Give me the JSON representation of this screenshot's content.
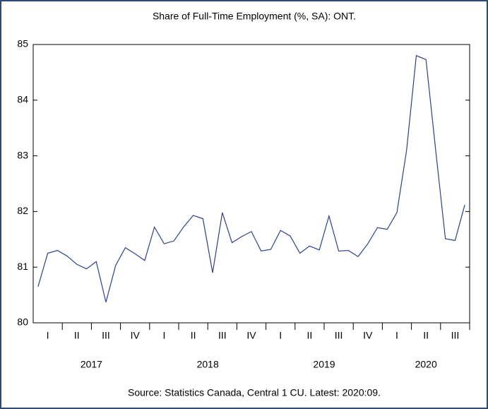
{
  "chart_data": {
    "type": "line",
    "title": "Share of Full-Time Employment (%, SA): ONT.",
    "source": "Source: Statistics Canada, Central 1 CU. Latest: 2020:09.",
    "categories": [
      null,
      null,
      null,
      null,
      null,
      null,
      null,
      null,
      null,
      null,
      null,
      null,
      null,
      null,
      null,
      null,
      null,
      null,
      null,
      null,
      null,
      null,
      null,
      null,
      null,
      null,
      null,
      null,
      null,
      null,
      null,
      null,
      null,
      null,
      null,
      null,
      null,
      null,
      null,
      null,
      null,
      null,
      null,
      null,
      null
    ],
    "quarter_labels": [
      "I",
      "II",
      "III",
      "IV",
      "I",
      "II",
      "III",
      "IV",
      "I",
      "II",
      "III",
      "IV",
      "I",
      "II",
      "III"
    ],
    "years": [
      "2017",
      "2018",
      "2019",
      "2020"
    ],
    "series": [
      {
        "name": "Share of Full-Time Employment",
        "color": "#2e3f8f",
        "values": [
          80.65,
          81.25,
          81.3,
          81.2,
          81.05,
          80.97,
          81.1,
          80.37,
          81.03,
          81.35,
          81.24,
          81.12,
          81.72,
          81.42,
          81.47,
          81.72,
          81.93,
          81.87,
          80.9,
          81.98,
          81.44,
          81.55,
          81.64,
          81.29,
          81.32,
          81.66,
          81.56,
          81.25,
          81.38,
          81.31,
          81.92,
          81.29,
          81.3,
          81.19,
          81.42,
          81.71,
          81.68,
          81.98,
          83.1,
          84.8,
          84.73,
          83.1,
          81.51,
          81.48,
          82.12
        ]
      }
    ],
    "ylim": [
      80,
      85
    ],
    "yticks": [
      80,
      81,
      82,
      83,
      84,
      85
    ],
    "grid": false
  }
}
